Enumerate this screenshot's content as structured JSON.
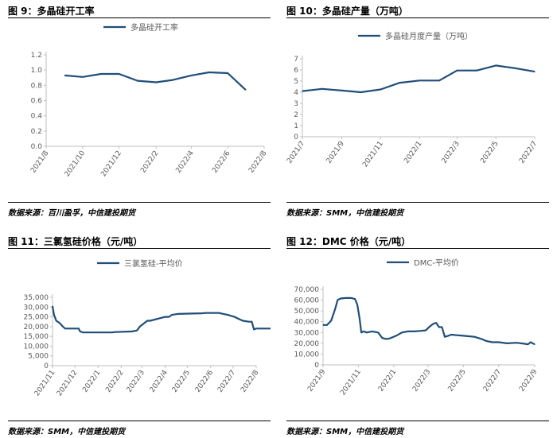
{
  "colors": {
    "series": "#1F4E79",
    "axis": "#BFBFBF",
    "text": "#595959"
  },
  "panels": [
    {
      "title": "图 9：多晶硅开工率",
      "source": "数据来源：百川盈孚，中信建投期货",
      "legend": "多晶硅开工率",
      "chart_data": {
        "type": "line",
        "series": [
          {
            "name": "多晶硅开工率",
            "x": [
              "2021-09-01",
              "2021-10-01",
              "2021-11-01",
              "2021-12-01",
              "2022-01-01",
              "2022-02-01",
              "2022-03-01",
              "2022-04-01",
              "2022-05-01",
              "2022-06-01",
              "2022-07-01"
            ],
            "values": [
              0.93,
              0.91,
              0.95,
              0.95,
              0.86,
              0.84,
              0.87,
              0.93,
              0.97,
              0.96,
              0.74
            ]
          }
        ],
        "x_ticks": [
          "2021/8",
          "2021/10",
          "2021/12",
          "2022/2",
          "2022/4",
          "2022/6",
          "2022/8"
        ],
        "x_tick_dates": [
          "2021-08-01",
          "2021-10-01",
          "2021-12-01",
          "2022-02-01",
          "2022-04-01",
          "2022-06-01",
          "2022-08-01"
        ],
        "y_ticks": [
          "0.0",
          "0.2",
          "0.4",
          "0.6",
          "0.8",
          "1.0",
          "1.2"
        ],
        "ylim": [
          0,
          1.2
        ],
        "grid": false,
        "legend_position": "top"
      }
    },
    {
      "title": "图 10：多晶硅产量（万吨）",
      "source": "数据来源：SMM，中信建投期货",
      "legend": "多晶硅月度产量（万吨）",
      "chart_data": {
        "type": "line",
        "series": [
          {
            "name": "多晶硅月度产量（万吨）",
            "x": [
              "2021-07-01",
              "2021-08-01",
              "2021-09-01",
              "2021-10-01",
              "2021-11-01",
              "2021-12-01",
              "2022-01-01",
              "2022-02-01",
              "2022-03-01",
              "2022-04-01",
              "2022-05-01",
              "2022-06-01",
              "2022-07-01"
            ],
            "values": [
              4.1,
              4.3,
              4.15,
              4.0,
              4.25,
              4.85,
              5.05,
              5.05,
              5.95,
              5.95,
              6.4,
              6.15,
              5.85
            ]
          }
        ],
        "x_ticks": [
          "2021/7",
          "2021/9",
          "2021/11",
          "2022/1",
          "2022/3",
          "2022/5",
          "2022/7"
        ],
        "x_tick_dates": [
          "2021-07-01",
          "2021-09-01",
          "2021-11-01",
          "2022-01-01",
          "2022-03-01",
          "2022-05-01",
          "2022-07-01"
        ],
        "y_ticks": [
          "0",
          "1",
          "2",
          "3",
          "4",
          "5",
          "6",
          "7"
        ],
        "ylim": [
          0,
          7
        ],
        "grid": false,
        "legend_position": "top"
      }
    },
    {
      "title": "图 11：三氯氢硅价格（元/吨）",
      "source": "数据来源：SMM，中信建投期货",
      "legend": "三氯氢硅-平均价",
      "chart_data": {
        "type": "line",
        "series": [
          {
            "name": "三氯氢硅-平均价",
            "x": [
              "2021-11-01",
              "2021-11-03",
              "2021-11-06",
              "2021-11-10",
              "2021-11-15",
              "2021-11-18",
              "2021-12-06",
              "2021-12-08",
              "2021-12-12",
              "2022-01-20",
              "2022-01-24",
              "2022-02-15",
              "2022-02-22",
              "2022-02-26",
              "2022-03-08",
              "2022-03-12",
              "2022-04-01",
              "2022-04-06",
              "2022-04-10",
              "2022-04-18",
              "2022-05-20",
              "2022-05-26",
              "2022-06-12",
              "2022-06-18",
              "2022-06-24",
              "2022-06-28",
              "2022-07-03",
              "2022-07-08",
              "2022-07-14",
              "2022-07-22",
              "2022-07-26",
              "2022-07-29",
              "2022-08-01",
              "2022-08-26"
            ],
            "values": [
              30500,
              26000,
              23000,
              22000,
              20000,
              19000,
              19000,
              17500,
              17000,
              17000,
              17200,
              17500,
              18000,
              20000,
              23000,
              23000,
              25000,
              25000,
              26000,
              26500,
              26800,
              27000,
              27000,
              26500,
              26000,
              25500,
              25000,
              24000,
              23000,
              22500,
              22500,
              18500,
              19000,
              19000
            ]
          }
        ],
        "x_ticks": [
          "2021/11",
          "2021/12",
          "2022/1",
          "2022/2",
          "2022/3",
          "2022/4",
          "2022/5",
          "2022/6",
          "2022/7",
          "2022/8"
        ],
        "x_tick_dates": [
          "2021-11-01",
          "2021-12-01",
          "2022-01-01",
          "2022-02-01",
          "2022-03-01",
          "2022-04-01",
          "2022-05-01",
          "2022-06-01",
          "2022-07-01",
          "2022-08-01"
        ],
        "y_ticks": [
          "0",
          "5,000",
          "10,000",
          "15,000",
          "20,000",
          "25,000",
          "30,000",
          "35,000"
        ],
        "ylim": [
          0,
          35000
        ],
        "grid": false,
        "legend_position": "top"
      }
    },
    {
      "title": "图 12：DMC 价格（元/吨）",
      "source": "数据来源：SMM，中信建投期货",
      "legend": "DMC-平均价",
      "chart_data": {
        "type": "line",
        "series": [
          {
            "name": "DMC-平均价",
            "x": [
              "2021-09-01",
              "2021-09-08",
              "2021-09-15",
              "2021-09-22",
              "2021-09-26",
              "2021-10-01",
              "2021-10-10",
              "2021-10-20",
              "2021-10-26",
              "2021-10-30",
              "2021-11-03",
              "2021-11-06",
              "2021-11-10",
              "2021-11-15",
              "2021-11-25",
              "2021-12-05",
              "2021-12-12",
              "2021-12-18",
              "2021-12-25",
              "2022-01-05",
              "2022-01-15",
              "2022-01-25",
              "2022-02-05",
              "2022-02-15",
              "2022-02-25",
              "2022-03-05",
              "2022-03-10",
              "2022-03-15",
              "2022-03-20",
              "2022-03-25",
              "2022-03-30",
              "2022-04-05",
              "2022-04-10",
              "2022-04-20",
              "2022-05-01",
              "2022-05-10",
              "2022-05-20",
              "2022-06-01",
              "2022-06-10",
              "2022-06-20",
              "2022-07-01",
              "2022-07-15",
              "2022-08-01",
              "2022-08-15",
              "2022-08-20",
              "2022-08-25",
              "2022-09-01"
            ],
            "values": [
              37000,
              37000,
              41000,
              52000,
              60000,
              61500,
              62000,
              62000,
              61000,
              56000,
              43000,
              30000,
              31000,
              30000,
              31000,
              30000,
              25000,
              24000,
              24500,
              27000,
              30000,
              31000,
              31000,
              31500,
              32000,
              36000,
              38000,
              39000,
              35000,
              35000,
              26000,
              27000,
              28000,
              27500,
              27000,
              26500,
              26000,
              24000,
              22000,
              21000,
              21000,
              20000,
              20500,
              19500,
              19000,
              21000,
              19000
            ]
          }
        ],
        "x_ticks": [
          "2021/9",
          "2021/11",
          "2022/1",
          "2022/3",
          "2022/5",
          "2022/7",
          "2022/9"
        ],
        "x_tick_dates": [
          "2021-09-01",
          "2021-11-01",
          "2022-01-01",
          "2022-03-01",
          "2022-05-01",
          "2022-07-01",
          "2022-09-01"
        ],
        "y_ticks": [
          "0",
          "10,000",
          "20,000",
          "30,000",
          "40,000",
          "50,000",
          "60,000",
          "70,000"
        ],
        "ylim": [
          0,
          70000
        ],
        "grid": false,
        "legend_position": "top"
      }
    }
  ]
}
